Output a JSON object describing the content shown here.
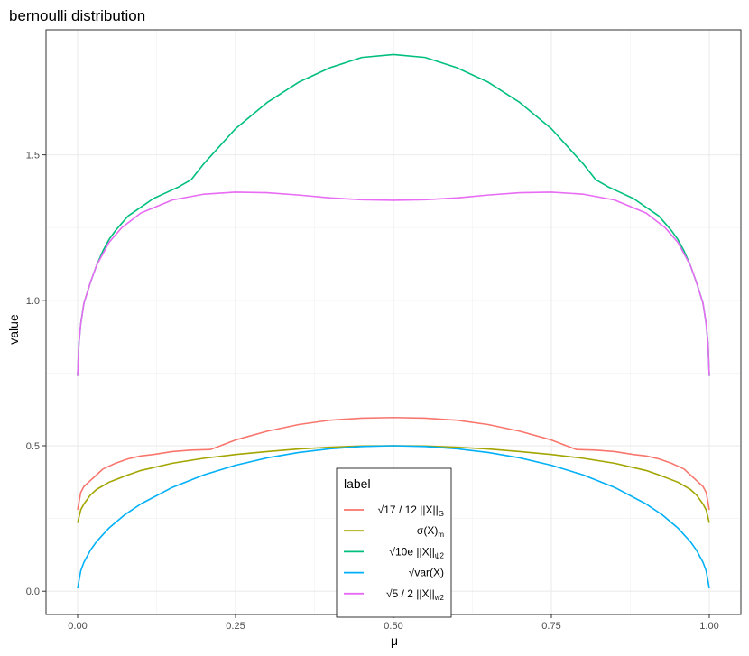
{
  "chart_data": {
    "type": "line",
    "title": "bernoulli distribution",
    "xlabel": "μ",
    "ylabel": "value",
    "xlim": [
      -0.05,
      1.05
    ],
    "ylim": [
      -0.08,
      1.93
    ],
    "x_ticks": [
      0,
      0.25,
      0.5,
      0.75,
      1
    ],
    "x_tick_labels": [
      "0.00",
      "0.25",
      "0.50",
      "0.75",
      "1.00"
    ],
    "y_ticks": [
      0,
      0.5,
      1,
      1.5
    ],
    "y_tick_labels": [
      "0.0",
      "0.5",
      "1.0",
      "1.5"
    ],
    "grid": true,
    "legend": {
      "title": "label",
      "placement": "bottom-center",
      "entries": [
        {
          "main": "√17 / 12 ||X||",
          "sub": "G",
          "color": "#F8766D"
        },
        {
          "main": "σ(X)",
          "sub": "m",
          "color": "#A3A500"
        },
        {
          "main": "√10e ||X||",
          "sub": "ψ2",
          "color": "#00BF7D"
        },
        {
          "main": "√var(X)",
          "sub": "",
          "color": "#00B0F6"
        },
        {
          "main": "√5 / 2 ||X||",
          "sub": "w2",
          "color": "#E76BF3"
        }
      ]
    },
    "series": [
      {
        "color": "#F8766D",
        "points": [
          [
            0.0,
            0.28
          ],
          [
            0.005,
            0.34
          ],
          [
            0.01,
            0.36
          ],
          [
            0.02,
            0.38
          ],
          [
            0.03,
            0.4
          ],
          [
            0.04,
            0.42
          ],
          [
            0.05,
            0.43
          ],
          [
            0.06,
            0.44
          ],
          [
            0.08,
            0.455
          ],
          [
            0.1,
            0.465
          ],
          [
            0.12,
            0.47
          ],
          [
            0.15,
            0.48
          ],
          [
            0.18,
            0.485
          ],
          [
            0.21,
            0.487
          ],
          [
            0.22,
            0.495
          ],
          [
            0.25,
            0.52
          ],
          [
            0.3,
            0.55
          ],
          [
            0.35,
            0.573
          ],
          [
            0.4,
            0.588
          ],
          [
            0.45,
            0.595
          ],
          [
            0.5,
            0.597
          ],
          [
            0.55,
            0.595
          ],
          [
            0.6,
            0.588
          ],
          [
            0.65,
            0.573
          ],
          [
            0.7,
            0.55
          ],
          [
            0.75,
            0.52
          ],
          [
            0.78,
            0.495
          ],
          [
            0.79,
            0.487
          ],
          [
            0.82,
            0.485
          ],
          [
            0.85,
            0.48
          ],
          [
            0.88,
            0.47
          ],
          [
            0.9,
            0.465
          ],
          [
            0.92,
            0.455
          ],
          [
            0.94,
            0.44
          ],
          [
            0.95,
            0.43
          ],
          [
            0.96,
            0.42
          ],
          [
            0.97,
            0.4
          ],
          [
            0.98,
            0.38
          ],
          [
            0.99,
            0.36
          ],
          [
            0.995,
            0.34
          ],
          [
            1.0,
            0.28
          ]
        ]
      },
      {
        "color": "#A3A500",
        "points": [
          [
            0.0,
            0.235
          ],
          [
            0.005,
            0.28
          ],
          [
            0.01,
            0.3
          ],
          [
            0.02,
            0.33
          ],
          [
            0.03,
            0.35
          ],
          [
            0.05,
            0.375
          ],
          [
            0.08,
            0.4
          ],
          [
            0.1,
            0.415
          ],
          [
            0.15,
            0.44
          ],
          [
            0.2,
            0.457
          ],
          [
            0.25,
            0.47
          ],
          [
            0.3,
            0.48
          ],
          [
            0.35,
            0.489
          ],
          [
            0.4,
            0.495
          ],
          [
            0.45,
            0.499
          ],
          [
            0.5,
            0.5
          ],
          [
            0.55,
            0.499
          ],
          [
            0.6,
            0.495
          ],
          [
            0.65,
            0.489
          ],
          [
            0.7,
            0.48
          ],
          [
            0.75,
            0.47
          ],
          [
            0.8,
            0.457
          ],
          [
            0.85,
            0.44
          ],
          [
            0.9,
            0.415
          ],
          [
            0.92,
            0.4
          ],
          [
            0.95,
            0.375
          ],
          [
            0.97,
            0.35
          ],
          [
            0.98,
            0.33
          ],
          [
            0.99,
            0.3
          ],
          [
            0.995,
            0.28
          ],
          [
            1.0,
            0.235
          ]
        ]
      },
      {
        "color": "#00BF7D",
        "points": [
          [
            0.0,
            0.74
          ],
          [
            0.002,
            0.85
          ],
          [
            0.005,
            0.92
          ],
          [
            0.01,
            0.99
          ],
          [
            0.02,
            1.06
          ],
          [
            0.03,
            1.12
          ],
          [
            0.04,
            1.17
          ],
          [
            0.05,
            1.21
          ],
          [
            0.06,
            1.24
          ],
          [
            0.08,
            1.29
          ],
          [
            0.1,
            1.32
          ],
          [
            0.12,
            1.35
          ],
          [
            0.14,
            1.37
          ],
          [
            0.16,
            1.39
          ],
          [
            0.18,
            1.415
          ],
          [
            0.2,
            1.47
          ],
          [
            0.25,
            1.59
          ],
          [
            0.3,
            1.68
          ],
          [
            0.35,
            1.75
          ],
          [
            0.4,
            1.8
          ],
          [
            0.45,
            1.835
          ],
          [
            0.5,
            1.845
          ],
          [
            0.55,
            1.835
          ],
          [
            0.6,
            1.8
          ],
          [
            0.65,
            1.75
          ],
          [
            0.7,
            1.68
          ],
          [
            0.75,
            1.59
          ],
          [
            0.8,
            1.47
          ],
          [
            0.82,
            1.415
          ],
          [
            0.84,
            1.39
          ],
          [
            0.86,
            1.37
          ],
          [
            0.88,
            1.35
          ],
          [
            0.9,
            1.32
          ],
          [
            0.92,
            1.29
          ],
          [
            0.94,
            1.24
          ],
          [
            0.95,
            1.21
          ],
          [
            0.96,
            1.17
          ],
          [
            0.97,
            1.12
          ],
          [
            0.98,
            1.06
          ],
          [
            0.99,
            0.99
          ],
          [
            0.995,
            0.92
          ],
          [
            0.998,
            0.85
          ],
          [
            1.0,
            0.74
          ]
        ]
      },
      {
        "color": "#00B0F6",
        "points": [
          [
            0.0,
            0.01
          ],
          [
            0.005,
            0.0705
          ],
          [
            0.01,
            0.0995
          ],
          [
            0.02,
            0.14
          ],
          [
            0.03,
            0.1706
          ],
          [
            0.05,
            0.2179
          ],
          [
            0.075,
            0.2634
          ],
          [
            0.1,
            0.3
          ],
          [
            0.15,
            0.3571
          ],
          [
            0.2,
            0.4
          ],
          [
            0.25,
            0.433
          ],
          [
            0.3,
            0.4583
          ],
          [
            0.35,
            0.477
          ],
          [
            0.4,
            0.4899
          ],
          [
            0.45,
            0.4975
          ],
          [
            0.5,
            0.5
          ],
          [
            0.55,
            0.4975
          ],
          [
            0.6,
            0.4899
          ],
          [
            0.65,
            0.477
          ],
          [
            0.7,
            0.4583
          ],
          [
            0.75,
            0.433
          ],
          [
            0.8,
            0.4
          ],
          [
            0.85,
            0.3571
          ],
          [
            0.9,
            0.3
          ],
          [
            0.925,
            0.2634
          ],
          [
            0.95,
            0.2179
          ],
          [
            0.97,
            0.1706
          ],
          [
            0.98,
            0.14
          ],
          [
            0.99,
            0.0995
          ],
          [
            0.995,
            0.0705
          ],
          [
            1.0,
            0.01
          ]
        ]
      },
      {
        "color": "#E76BF3",
        "points": [
          [
            0.0,
            0.74
          ],
          [
            0.002,
            0.85
          ],
          [
            0.005,
            0.92
          ],
          [
            0.01,
            0.99
          ],
          [
            0.02,
            1.06
          ],
          [
            0.03,
            1.12
          ],
          [
            0.04,
            1.16
          ],
          [
            0.05,
            1.2
          ],
          [
            0.07,
            1.25
          ],
          [
            0.1,
            1.3
          ],
          [
            0.15,
            1.345
          ],
          [
            0.2,
            1.365
          ],
          [
            0.25,
            1.372
          ],
          [
            0.3,
            1.37
          ],
          [
            0.35,
            1.362
          ],
          [
            0.4,
            1.352
          ],
          [
            0.45,
            1.346
          ],
          [
            0.5,
            1.344
          ],
          [
            0.55,
            1.346
          ],
          [
            0.6,
            1.352
          ],
          [
            0.65,
            1.362
          ],
          [
            0.7,
            1.37
          ],
          [
            0.75,
            1.372
          ],
          [
            0.8,
            1.365
          ],
          [
            0.85,
            1.345
          ],
          [
            0.9,
            1.3
          ],
          [
            0.93,
            1.25
          ],
          [
            0.95,
            1.2
          ],
          [
            0.96,
            1.16
          ],
          [
            0.97,
            1.12
          ],
          [
            0.98,
            1.06
          ],
          [
            0.99,
            0.99
          ],
          [
            0.995,
            0.92
          ],
          [
            0.998,
            0.85
          ],
          [
            1.0,
            0.74
          ]
        ]
      }
    ]
  }
}
